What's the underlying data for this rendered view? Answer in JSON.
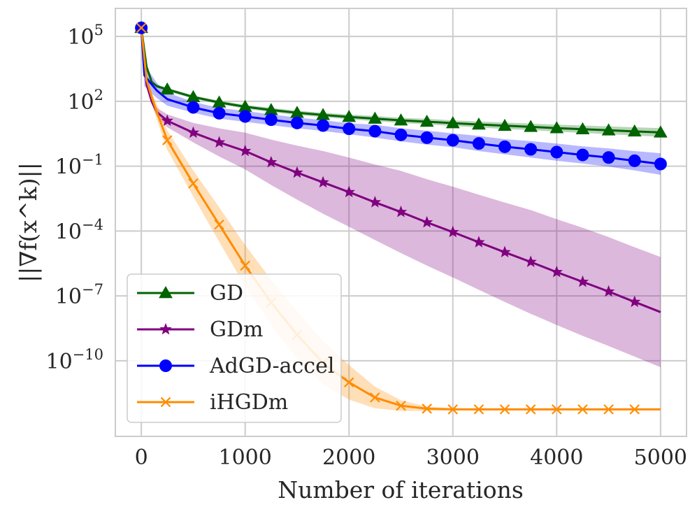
{
  "chart_data": {
    "type": "line",
    "title": "",
    "xlabel": "Number of iterations",
    "ylabel": "||∇f(x^k)||",
    "yscale": "log",
    "xlim": [
      -250,
      5250
    ],
    "ylim_log10": [
      -13.5,
      6.3
    ],
    "grid": true,
    "x_ticks": [
      {
        "value": 0,
        "label": "0"
      },
      {
        "value": 1000,
        "label": "1000"
      },
      {
        "value": 2000,
        "label": "2000"
      },
      {
        "value": 3000,
        "label": "3000"
      },
      {
        "value": 4000,
        "label": "4000"
      },
      {
        "value": 5000,
        "label": "5000"
      }
    ],
    "y_ticks": [
      {
        "exp": 5,
        "base": "10",
        "sup": "5"
      },
      {
        "exp": 2,
        "base": "10",
        "sup": "2"
      },
      {
        "exp": -1,
        "base": "10",
        "sup": "−1"
      },
      {
        "exp": -4,
        "base": "10",
        "sup": "−4"
      },
      {
        "exp": -7,
        "base": "10",
        "sup": "−7"
      },
      {
        "exp": -10,
        "base": "10",
        "sup": "−10"
      }
    ],
    "legend_position": "lower-left",
    "series": [
      {
        "name": "GD",
        "color": "#006400",
        "marker": "triangle",
        "x": [
          0,
          50,
          100,
          150,
          250,
          500,
          750,
          1000,
          1250,
          1500,
          1750,
          2000,
          2250,
          2500,
          2750,
          3000,
          3250,
          3500,
          3750,
          4000,
          4250,
          4500,
          4750,
          5000
        ],
        "log10": [
          5.4,
          3.6,
          2.9,
          2.7,
          2.55,
          2.2,
          1.95,
          1.75,
          1.6,
          1.47,
          1.37,
          1.28,
          1.2,
          1.12,
          1.06,
          0.99,
          0.93,
          0.87,
          0.82,
          0.76,
          0.71,
          0.66,
          0.61,
          0.56
        ],
        "band_log10": [
          0.05,
          0.05,
          0.06,
          0.07,
          0.08,
          0.08,
          0.08,
          0.09,
          0.1,
          0.1,
          0.1,
          0.11,
          0.12,
          0.12,
          0.13,
          0.13,
          0.14,
          0.15,
          0.15,
          0.16,
          0.17,
          0.18,
          0.19,
          0.2
        ],
        "marker_x": [
          0,
          250,
          500,
          750,
          1000,
          1250,
          1500,
          1750,
          2000,
          2250,
          2500,
          2750,
          3000,
          3250,
          3500,
          3750,
          4000,
          4250,
          4500,
          4750,
          5000
        ]
      },
      {
        "name": "GDm",
        "color": "#800080",
        "marker": "star",
        "x": [
          0,
          50,
          100,
          150,
          250,
          500,
          750,
          1000,
          1250,
          1500,
          1750,
          2000,
          2250,
          2500,
          2750,
          3000,
          3250,
          3500,
          3750,
          4000,
          4250,
          4500,
          4750,
          5000
        ],
        "log10": [
          5.4,
          2.8,
          2.0,
          1.5,
          1.1,
          0.55,
          0.1,
          -0.3,
          -0.82,
          -1.3,
          -1.75,
          -2.2,
          -2.67,
          -3.12,
          -3.6,
          -4.05,
          -4.52,
          -4.98,
          -5.43,
          -5.9,
          -6.35,
          -6.8,
          -7.28,
          -7.75
        ],
        "band_log10": [
          0.05,
          0.1,
          0.15,
          0.2,
          0.3,
          0.45,
          0.65,
          0.85,
          1.05,
          1.25,
          1.45,
          1.6,
          1.75,
          1.9,
          2.0,
          2.1,
          2.2,
          2.3,
          2.4,
          2.45,
          2.5,
          2.52,
          2.53,
          2.55
        ],
        "marker_x": [
          250,
          500,
          750,
          1000,
          1250,
          1500,
          1750,
          2000,
          2250,
          2500,
          2750,
          3000,
          3250,
          3500,
          3750,
          4000,
          4250,
          4500,
          4750
        ]
      },
      {
        "name": "AdGD-accel",
        "color": "#0000ff",
        "marker": "circle",
        "x": [
          0,
          30,
          80,
          150,
          250,
          500,
          750,
          1000,
          1250,
          1500,
          1750,
          2000,
          2250,
          2500,
          2750,
          3000,
          3250,
          3500,
          3750,
          4000,
          4250,
          4500,
          4750,
          5000
        ],
        "log10": [
          5.4,
          3.2,
          2.9,
          2.5,
          2.1,
          1.72,
          1.45,
          1.3,
          1.15,
          1.0,
          0.88,
          0.73,
          0.62,
          0.45,
          0.32,
          0.2,
          0.05,
          -0.1,
          -0.22,
          -0.35,
          -0.48,
          -0.6,
          -0.75,
          -0.9
        ],
        "band_log10": [
          0.05,
          0.5,
          0.45,
          0.35,
          0.3,
          0.25,
          0.25,
          0.25,
          0.25,
          0.25,
          0.25,
          0.25,
          0.3,
          0.3,
          0.32,
          0.32,
          0.35,
          0.35,
          0.38,
          0.4,
          0.4,
          0.42,
          0.45,
          0.5
        ],
        "marker_x": [
          0,
          500,
          750,
          1000,
          1250,
          1500,
          1750,
          2000,
          2250,
          2500,
          2750,
          3000,
          3250,
          3500,
          3750,
          4000,
          4250,
          4500,
          4750,
          5000
        ]
      },
      {
        "name": "iHGDm",
        "color": "#ff8c00",
        "marker": "x",
        "x": [
          0,
          50,
          100,
          150,
          250,
          500,
          750,
          1000,
          1250,
          1500,
          1750,
          2000,
          2250,
          2500,
          2750,
          3000,
          3250,
          3500,
          3750,
          4000,
          4250,
          4500,
          4750,
          5000
        ],
        "log10": [
          5.4,
          3.0,
          2.2,
          1.5,
          0.2,
          -1.8,
          -3.7,
          -5.6,
          -7.3,
          -8.8,
          -10.1,
          -11.0,
          -11.7,
          -12.08,
          -12.22,
          -12.25,
          -12.25,
          -12.25,
          -12.25,
          -12.25,
          -12.25,
          -12.25,
          -12.25,
          -12.25
        ],
        "band_log10": [
          0.05,
          0.15,
          0.25,
          0.35,
          0.45,
          0.6,
          0.8,
          0.95,
          1.05,
          1.1,
          1.0,
          0.8,
          0.5,
          0.25,
          0.1,
          0.05,
          0.05,
          0.05,
          0.05,
          0.05,
          0.05,
          0.05,
          0.05,
          0.05
        ],
        "marker_x": [
          0,
          250,
          500,
          750,
          1000,
          1250,
          1500,
          1750,
          2000,
          2250,
          2500,
          2750,
          3000,
          3250,
          3500,
          3750,
          4000,
          4250,
          4500,
          4750
        ]
      }
    ]
  }
}
